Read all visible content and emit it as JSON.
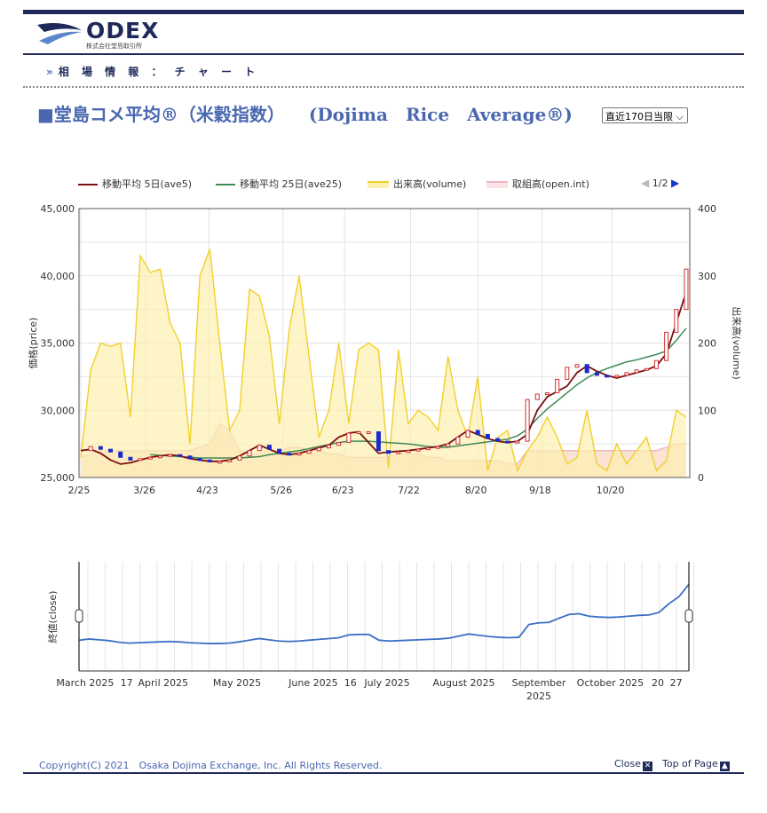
{
  "header": {
    "logo_text": "ODEX",
    "logo_sub": "株式会社堂島取引所",
    "breadcrumb": "相 場 情 報 ： チ ャ ー ト"
  },
  "page": {
    "title": "■堂島コメ平均®（米穀指数） 　(Dojima　Rice　Average®)",
    "range_selected": "直近170日当限"
  },
  "legend": {
    "ave5": "移動平均 5日(ave5)",
    "ave25": "移動平均 25日(ave25)",
    "volume": "出来高(volume)",
    "openint": "取組高(open.int)",
    "page": "1/2"
  },
  "colors": {
    "ave5": "#7a1010",
    "ave25": "#3e8a55",
    "volume_line": "#f2d02a",
    "volume_fill": "#fcf0b0",
    "openint_line": "#f2b7c2",
    "openint_fill": "#f8d9c4",
    "candle_up": "#d03030",
    "candle_down": "#1a2ad0",
    "nav_line": "#3d6fc6"
  },
  "chart_data": [
    {
      "type": "candlestick",
      "ylabel": "価格(price)",
      "y2label": "出来高(volume)",
      "ylim": [
        25000,
        45000
      ],
      "y2lim": [
        0,
        400
      ],
      "y_ticks": [
        "45,000",
        "40,000",
        "35,000",
        "30,000",
        "25,000"
      ],
      "y2_ticks": [
        "400",
        "300",
        "200",
        "100",
        "0"
      ],
      "x_ticks": [
        "2/25",
        "3/26",
        "4/23",
        "5/26",
        "6/23",
        "7/22",
        "8/20",
        "9/18",
        "10/20"
      ],
      "grid": true,
      "series": [
        {
          "name": "移動平均 5日(ave5)",
          "values": [
            27000,
            27100,
            26800,
            26300,
            26000,
            26100,
            26300,
            26500,
            26600,
            26700,
            26600,
            26400,
            26300,
            26200,
            26200,
            26300,
            26600,
            27000,
            27400,
            27100,
            26800,
            26700,
            26800,
            27000,
            27200,
            27400,
            28000,
            28300,
            28400,
            27600,
            26800,
            26900,
            26950,
            27000,
            27100,
            27200,
            27300,
            27500,
            28000,
            28500,
            28200,
            27900,
            27700,
            27600,
            27700,
            28200,
            30000,
            31000,
            31400,
            31800,
            32800,
            33300,
            32900,
            32600,
            32400,
            32600,
            32800,
            33000,
            33300,
            34200,
            36500,
            38800
          ]
        },
        {
          "name": "移動平均 25日(ave25)",
          "values": [
            null,
            null,
            null,
            null,
            null,
            null,
            null,
            26700,
            26650,
            26600,
            26550,
            26500,
            26450,
            26450,
            26450,
            26450,
            26450,
            26500,
            26550,
            26700,
            26800,
            26900,
            27000,
            27150,
            27300,
            27450,
            27600,
            27700,
            27700,
            27700,
            27650,
            27600,
            27550,
            27500,
            27400,
            27300,
            27250,
            27250,
            27350,
            27450,
            27550,
            27650,
            27750,
            27850,
            28100,
            28600,
            29400,
            30100,
            30700,
            31300,
            31900,
            32400,
            32800,
            33100,
            33350,
            33600,
            33750,
            33950,
            34150,
            34400,
            35200,
            36100
          ]
        },
        {
          "name": "出来高(volume)",
          "values": [
            30,
            160,
            200,
            195,
            200,
            90,
            330,
            305,
            310,
            230,
            200,
            50,
            300,
            340,
            200,
            70,
            100,
            280,
            270,
            210,
            80,
            220,
            300,
            180,
            60,
            100,
            200,
            80,
            190,
            200,
            190,
            15,
            190,
            80,
            100,
            90,
            70,
            180,
            100,
            60,
            150,
            10,
            60,
            70,
            10,
            40,
            60,
            90,
            60,
            20,
            30,
            100,
            20,
            10,
            50,
            20,
            40,
            60,
            10,
            25,
            100,
            90
          ]
        },
        {
          "name": "取組高(open.int)",
          "values": [
            30,
            35,
            40,
            40,
            40,
            40,
            40,
            40,
            40,
            40,
            40,
            40,
            45,
            50,
            80,
            70,
            40,
            35,
            35,
            40,
            40,
            45,
            45,
            40,
            40,
            35,
            35,
            30,
            30,
            30,
            30,
            30,
            35,
            35,
            35,
            30,
            30,
            25,
            25,
            25,
            25,
            25,
            25,
            20,
            20,
            40,
            40,
            40,
            40,
            40,
            40,
            40,
            40,
            40,
            40,
            40,
            40,
            40,
            40,
            45,
            50,
            50
          ]
        }
      ]
    },
    {
      "type": "line",
      "ylabel": "終値(close)",
      "x_ticks": [
        "March 2025",
        "17",
        "April 2025",
        "May 2025",
        "June 2025",
        "16",
        "July 2025",
        "August 2025",
        "September 2025",
        "October 2025",
        "20",
        "27"
      ],
      "series": [
        {
          "name": "終値(close)",
          "values": [
            27000,
            27300,
            27100,
            26900,
            26500,
            26300,
            26400,
            26500,
            26600,
            26700,
            26600,
            26400,
            26300,
            26200,
            26200,
            26300,
            26600,
            27000,
            27400,
            27100,
            26800,
            26700,
            26800,
            27000,
            27200,
            27400,
            27600,
            28300,
            28400,
            28400,
            27000,
            26800,
            26900,
            27000,
            27100,
            27200,
            27300,
            27500,
            28000,
            28500,
            28200,
            27900,
            27700,
            27600,
            27700,
            30800,
            31200,
            31300,
            32300,
            33200,
            33400,
            32800,
            32600,
            32500,
            32600,
            32800,
            33000,
            33100,
            33700,
            35800,
            37500,
            40500
          ]
        }
      ]
    }
  ],
  "footer": {
    "copyright": "Copyright(C) 2021　Osaka Dojima Exchange, Inc. All Rights Reserved.",
    "close": "Close",
    "top": "Top of Page"
  }
}
